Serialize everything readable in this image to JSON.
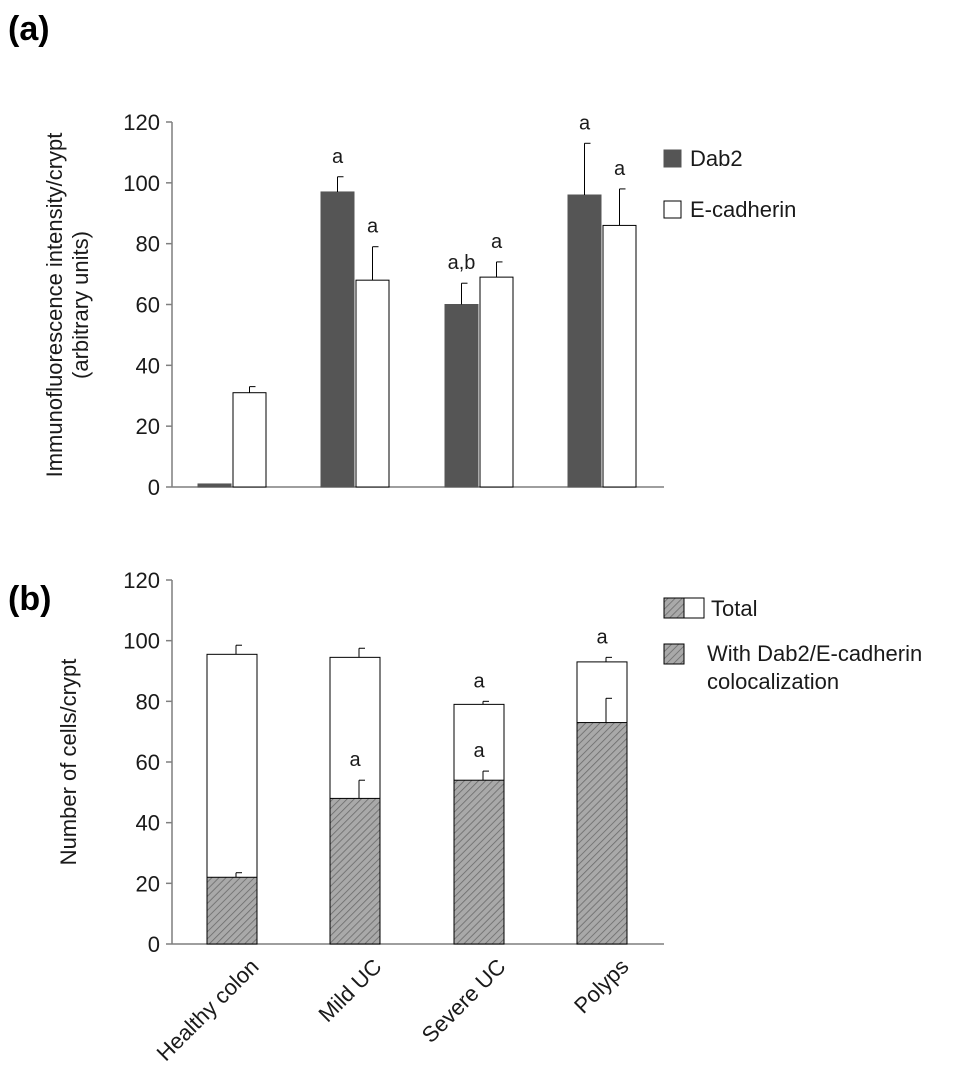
{
  "chart_data": [
    {
      "panel": "(a)",
      "type": "bar",
      "categories": [
        "Healthy colon",
        "Mild UC",
        "Severe UC",
        "Polyps"
      ],
      "ylabel": [
        "Immunofluorescence intensity/crypt",
        "(arbitrary units)"
      ],
      "ylim": [
        0,
        120
      ],
      "yticks": [
        0,
        20,
        40,
        60,
        80,
        100,
        120
      ],
      "series": [
        {
          "name": "Dab2",
          "fill": "#555555",
          "values": [
            1,
            97,
            60,
            96
          ],
          "errors": [
            0,
            5,
            7,
            17
          ],
          "labels": [
            "",
            "a",
            "a,b",
            "a"
          ]
        },
        {
          "name": "E-cadherin",
          "fill": "#ffffff",
          "values": [
            31,
            68,
            69,
            86
          ],
          "errors": [
            2,
            11,
            5,
            12
          ],
          "labels": [
            "",
            "a",
            "a",
            "a"
          ]
        }
      ],
      "legend": "right"
    },
    {
      "panel": "(b)",
      "type": "bar",
      "categories": [
        "Healthy colon",
        "Mild UC",
        "Severe UC",
        "Polyps"
      ],
      "ylabel": [
        "Number of  cells/crypt"
      ],
      "ylim": [
        0,
        120
      ],
      "yticks": [
        0,
        20,
        40,
        60,
        80,
        100,
        120
      ],
      "series": [
        {
          "name": "Total",
          "values": [
            95.5,
            94.5,
            79,
            93
          ],
          "errors": [
            3,
            3,
            1,
            1.5
          ],
          "labels": [
            "",
            "",
            "a",
            "a"
          ]
        },
        {
          "name": "With Dab2/E-cadherin colocalization",
          "legend_lines": [
            "With Dab2/E-cadherin",
            "colocalization"
          ],
          "values": [
            22,
            48,
            54,
            73
          ],
          "errors": [
            1.5,
            6,
            3,
            8
          ],
          "labels": [
            "",
            "a",
            "a",
            ""
          ]
        }
      ],
      "legend": "right"
    }
  ]
}
